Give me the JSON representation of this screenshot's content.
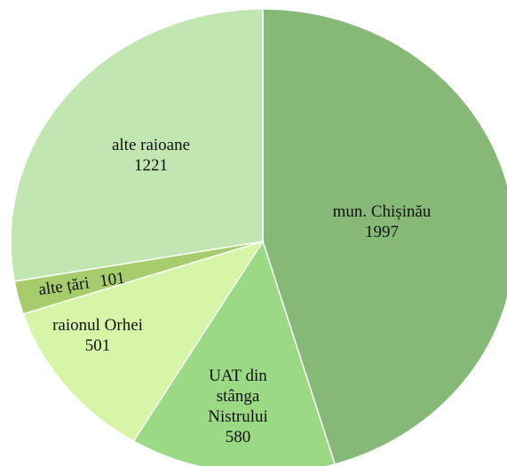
{
  "chart_data": {
    "type": "pie",
    "categories": [
      "mun. Chișinău",
      "UAT din stânga Nistrului",
      "raionul Orhei",
      "alte țări",
      "alte raioane"
    ],
    "values": [
      1997,
      580,
      501,
      101,
      1221
    ],
    "colors": [
      "#86b878",
      "#9bd985",
      "#d7f5a6",
      "#a6cc6c",
      "#c1e6b1"
    ]
  }
}
